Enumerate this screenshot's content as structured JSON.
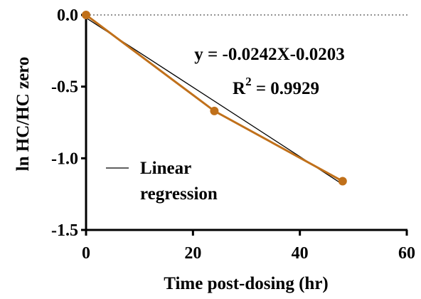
{
  "chart_data": {
    "type": "line",
    "xlabel": "Time post-dosing  (hr)",
    "ylabel": "ln HC/HC zero",
    "xlim": [
      0,
      60
    ],
    "ylim": [
      -1.5,
      0.0
    ],
    "x_ticks": [
      0,
      20,
      40,
      60
    ],
    "x_tick_labels": [
      "0",
      "20",
      "40",
      "60"
    ],
    "y_ticks": [
      0.0,
      -0.5,
      -1.0,
      -1.5
    ],
    "y_tick_labels": [
      "0.0",
      "-0.5",
      "-1.0",
      "-1.5"
    ],
    "grid": false,
    "zero_reference_line": "dotted",
    "series": [
      {
        "x": [
          0,
          24,
          48
        ],
        "y": [
          0.0,
          -0.67,
          -1.16
        ],
        "color": "#C0701A",
        "marker": "circle"
      }
    ],
    "regression": {
      "name": "Linear regression",
      "slope": -0.0242,
      "intercept": -0.0203,
      "x_range": [
        0,
        48
      ],
      "color": "#000000"
    },
    "annotations": {
      "equation": "y = -0.0242X-0.0203",
      "r2_prefix": "R",
      "r2_superscript": "2",
      "r2_value": " = 0.9929"
    },
    "legend": {
      "placement": "lower-left",
      "line1": "Linear",
      "line2": "regression"
    }
  }
}
